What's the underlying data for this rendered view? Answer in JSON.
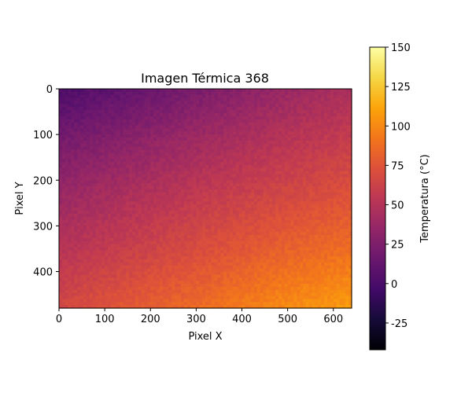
{
  "chart_data": {
    "type": "heatmap",
    "title": "Imagen Térmica 368",
    "xlabel": "Pixel X",
    "ylabel": "Pixel Y",
    "xlim": [
      0,
      640
    ],
    "ylim": [
      480,
      0
    ],
    "x_ticks": [
      0,
      100,
      200,
      300,
      400,
      500,
      600
    ],
    "y_ticks": [
      0,
      100,
      200,
      300,
      400
    ],
    "colormap": "inferno",
    "colorbar": {
      "label": "Temperatura (°C)",
      "min": -42,
      "max": 150,
      "ticks": [
        -25,
        0,
        25,
        50,
        75,
        100,
        125,
        150
      ]
    },
    "value_grid": {
      "columns_x": [
        0,
        160,
        320,
        480,
        640
      ],
      "rows_y": [
        0,
        120,
        240,
        360,
        480
      ],
      "values": [
        [
          2,
          12,
          24,
          36,
          46
        ],
        [
          22,
          32,
          42,
          52,
          60
        ],
        [
          38,
          48,
          58,
          66,
          74
        ],
        [
          52,
          62,
          72,
          82,
          90
        ],
        [
          66,
          78,
          88,
          100,
          108
        ]
      ]
    }
  }
}
